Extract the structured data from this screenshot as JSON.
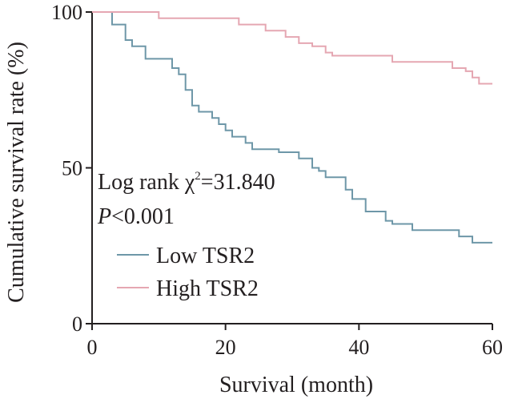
{
  "chart_data": {
    "type": "line",
    "xlabel": "Survival (month)",
    "ylabel": "Cumulative survival rate (%)",
    "xlim": [
      0,
      60
    ],
    "ylim": [
      0,
      100
    ],
    "xticks": [
      0,
      20,
      40,
      60
    ],
    "yticks": [
      0,
      50,
      100
    ],
    "grid": false,
    "legend_position": "lower-left",
    "annotations": {
      "logrank_prefix": "Log rank ",
      "chi": "χ",
      "sup": "2",
      "logrank_value": "=31.840",
      "p_italic": "P",
      "p_rest": "<0.001"
    },
    "series": [
      {
        "name": "Low TSR2",
        "color": "#6e97a8",
        "steps": [
          [
            0,
            100
          ],
          [
            3,
            96
          ],
          [
            5,
            91
          ],
          [
            6,
            89
          ],
          [
            8,
            85
          ],
          [
            12,
            82
          ],
          [
            13,
            80
          ],
          [
            14,
            75
          ],
          [
            15,
            70
          ],
          [
            16,
            68
          ],
          [
            18,
            66
          ],
          [
            19,
            64
          ],
          [
            20,
            62
          ],
          [
            21,
            60
          ],
          [
            23,
            58
          ],
          [
            24,
            56
          ],
          [
            28,
            55
          ],
          [
            31,
            53
          ],
          [
            33,
            50
          ],
          [
            34,
            49
          ],
          [
            35,
            47
          ],
          [
            38,
            43
          ],
          [
            39,
            40
          ],
          [
            41,
            36
          ],
          [
            44,
            33
          ],
          [
            45,
            32
          ],
          [
            48,
            30
          ],
          [
            55,
            28
          ],
          [
            57,
            26
          ],
          [
            60,
            26
          ]
        ]
      },
      {
        "name": "High TSR2",
        "color": "#e5a7b2",
        "steps": [
          [
            0,
            100
          ],
          [
            10,
            98
          ],
          [
            22,
            96
          ],
          [
            26,
            94
          ],
          [
            29,
            92
          ],
          [
            31,
            90
          ],
          [
            33,
            89
          ],
          [
            35,
            87
          ],
          [
            36,
            86
          ],
          [
            45,
            84
          ],
          [
            54,
            82
          ],
          [
            56,
            81
          ],
          [
            57,
            79
          ],
          [
            58,
            77
          ],
          [
            60,
            77
          ]
        ]
      }
    ]
  }
}
